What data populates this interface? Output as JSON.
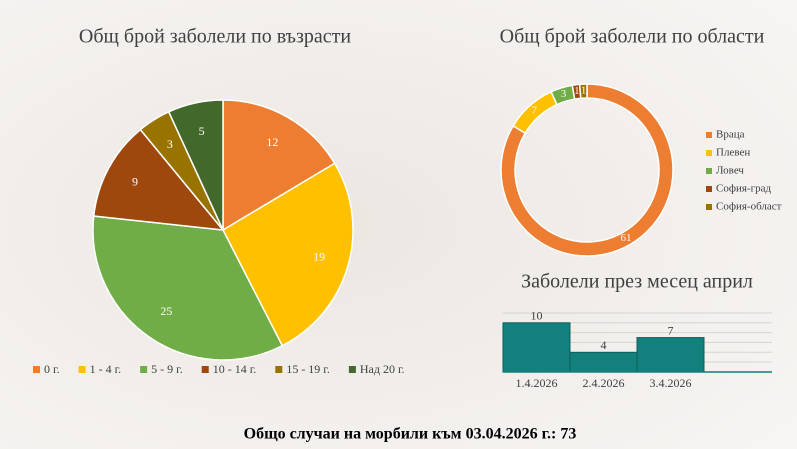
{
  "chart_data": [
    {
      "type": "pie",
      "title": "Общ брой заболели по възрасти",
      "categories": [
        "0 г.",
        "1 - 4 г.",
        "5 - 9 г.",
        "10 - 14 г.",
        "15 - 19 г.",
        "Над 20 г."
      ],
      "values": [
        12,
        19,
        25,
        9,
        3,
        5
      ],
      "colors": [
        "#ed7d31",
        "#ffc000",
        "#70ad47",
        "#9e480e",
        "#997300",
        "#43682b"
      ],
      "legend": "bottom"
    },
    {
      "type": "donut",
      "title": "Общ брой заболели по области",
      "categories": [
        "Враца",
        "Плевен",
        "Ловеч",
        "София-град",
        "София-област"
      ],
      "values": [
        61,
        7,
        3,
        1,
        1
      ],
      "colors": [
        "#ed7d31",
        "#ffc000",
        "#70ad47",
        "#9e480e",
        "#997300"
      ],
      "legend": "right"
    },
    {
      "type": "bar",
      "title": "Заболели през месец април",
      "categories": [
        "1.4.2026",
        "2.4.2026",
        "3.4.2026"
      ],
      "values": [
        10,
        4,
        7
      ],
      "color": "#13807e",
      "ylim": [
        0,
        12
      ],
      "grid": true
    }
  ],
  "footer": "Общо случаи на морбили към 03.04.2026 г.: 73"
}
